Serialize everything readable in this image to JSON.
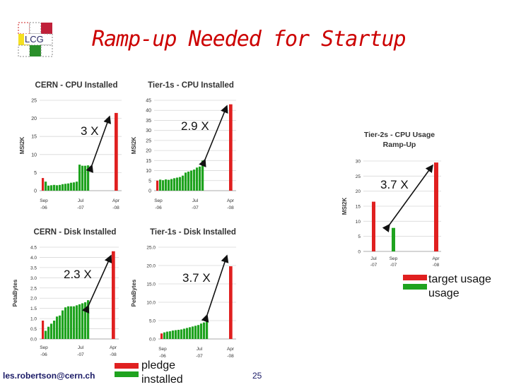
{
  "slide": {
    "title": "Ramp-up Needed for Startup",
    "logo_text": "LCG",
    "footer": "les.robertson@cern.ch",
    "page_number": "25",
    "colors": {
      "target": "#e02020",
      "usage": "#1fa31f",
      "title": "#cc0000"
    }
  },
  "legend_right": {
    "target_label": "target usage",
    "usage_label": "usage"
  },
  "legend_bottom": {
    "label_1": "pledge",
    "label_2": "installed"
  },
  "factors": [
    "3 X",
    "2.9 X",
    "2.3 X",
    "3.7 X",
    "3.7 X"
  ],
  "chart_data": [
    {
      "type": "bar",
      "title": "CERN - CPU Installed",
      "ylabel": "MSI2K",
      "ylim": [
        0,
        25
      ],
      "yticks": [
        "0",
        "5",
        "10",
        "15",
        "20",
        "25"
      ],
      "xticks": [
        [
          "Sep",
          "-06"
        ],
        [
          "Jul",
          "-07"
        ],
        [
          "Apr",
          "-08"
        ]
      ],
      "usage": [
        2.5,
        1.4,
        1.5,
        1.6,
        1.5,
        1.6,
        1.8,
        1.9,
        2.0,
        2.2,
        2.3,
        2.5,
        7.2,
        6.9,
        6.9,
        7.0
      ],
      "target": {
        "first": 3.5,
        "last": 21.5
      },
      "factor": "3 X"
    },
    {
      "type": "bar",
      "title": "Tier-1s - CPU Installed",
      "ylabel": "MSI2K",
      "ylim": [
        0,
        45
      ],
      "yticks": [
        "0",
        "5",
        "10",
        "15",
        "20",
        "25",
        "30",
        "35",
        "40",
        "45"
      ],
      "xticks": [
        [
          "Sep",
          "-06"
        ],
        [
          "Jul",
          "-07"
        ],
        [
          "Apr",
          "-08"
        ]
      ],
      "usage": [
        5.5,
        5.2,
        5.6,
        5.4,
        5.8,
        6.2,
        6.5,
        6.8,
        7.5,
        9.0,
        9.5,
        10.0,
        10.5,
        11.5,
        12.0,
        15.0
      ],
      "target": {
        "first": 5.0,
        "last": 43.0
      },
      "factor": "2.9 X"
    },
    {
      "type": "bar",
      "title": "CERN - Disk Installed",
      "ylabel": "PetaBytes",
      "ylim": [
        0,
        4.5
      ],
      "yticks": [
        "0.0",
        "0.5",
        "1.0",
        "1.5",
        "2.0",
        "2.5",
        "3.0",
        "3.5",
        "4.0",
        "4.5"
      ],
      "xticks": [
        [
          "Sep",
          "-06"
        ],
        [
          "Jul",
          "-07"
        ],
        [
          "Apr",
          "-08"
        ]
      ],
      "usage": [
        0.4,
        0.6,
        0.75,
        0.9,
        1.1,
        1.15,
        1.4,
        1.55,
        1.6,
        1.6,
        1.6,
        1.65,
        1.7,
        1.75,
        1.8,
        1.9
      ],
      "target": {
        "first": 0.9,
        "last": 4.3
      },
      "factor": "2.3 X"
    },
    {
      "type": "bar",
      "title": "Tier-1s - Disk Installed",
      "ylabel": "PetaBytes",
      "ylim": [
        0,
        25
      ],
      "yticks": [
        "0.0",
        "5.0",
        "10.0",
        "15.0",
        "20.0",
        "25.0"
      ],
      "xticks": [
        [
          "Sep",
          "-06"
        ],
        [
          "Jul",
          "-07"
        ],
        [
          "Apr",
          "-08"
        ]
      ],
      "usage": [
        1.8,
        2.0,
        2.1,
        2.3,
        2.4,
        2.5,
        2.6,
        2.8,
        3.0,
        3.2,
        3.4,
        3.6,
        3.8,
        4.2,
        4.5,
        5.0
      ],
      "target": {
        "first": 1.5,
        "last": 19.8
      },
      "factor": "3.7 X"
    },
    {
      "type": "bar",
      "title": "Tier-2s - CPU Usage Ramp-Up",
      "ylabel": "MSI2K",
      "ylim": [
        0,
        30
      ],
      "yticks": [
        "0",
        "5",
        "10",
        "15",
        "20",
        "25",
        "30"
      ],
      "xticks": [
        [
          "Jul",
          "-07"
        ],
        [
          "Sep",
          "-07"
        ],
        [
          "Apr",
          "-08"
        ]
      ],
      "usage": [
        7.8
      ],
      "target": {
        "first": 16.5,
        "last": 29.5
      },
      "factor": "3.7 X"
    }
  ]
}
